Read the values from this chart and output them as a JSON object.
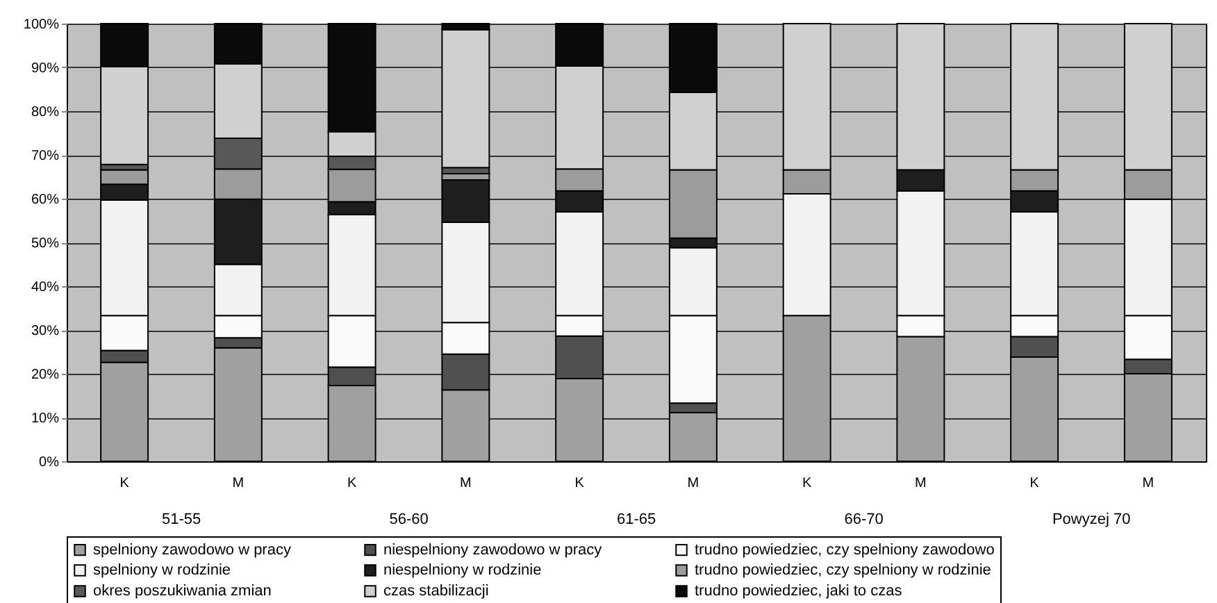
{
  "chart_data": {
    "type": "bar",
    "stacked": true,
    "categories": [
      "K",
      "M",
      "K",
      "M",
      "K",
      "M",
      "K",
      "M",
      "K",
      "M"
    ],
    "annotations": [
      "51-55",
      "56-60",
      "61-65",
      "66-70",
      "Powyzej 70"
    ],
    "series": [
      {
        "name": "spelniony zawodowo w pracy",
        "color": "#a0a0a0",
        "values": [
          22.6,
          25.9,
          17.3,
          16.3,
          18.9,
          11.1,
          33.3,
          28.5,
          23.8,
          20.0
        ]
      },
      {
        "name": "niespelniony zawodowo w pracy",
        "color": "#505050",
        "values": [
          2.7,
          2.3,
          4.2,
          8.2,
          9.7,
          2.2,
          0,
          0,
          4.7,
          3.3
        ]
      },
      {
        "name": "trudno powiedziec, czy spelniony zawodowo",
        "color": "#fafafa",
        "values": [
          8.0,
          5.1,
          11.8,
          7.2,
          4.7,
          20.0,
          0,
          4.8,
          4.8,
          10.0
        ]
      },
      {
        "name": "spelniony w rodzinie",
        "color": "#f2f2f2",
        "values": [
          26.4,
          11.7,
          23.1,
          22.9,
          23.7,
          15.5,
          27.8,
          28.5,
          23.7,
          26.6
        ]
      },
      {
        "name": "niespelniony w rodzinie",
        "color": "#1e1e1e",
        "values": [
          3.6,
          14.9,
          2.9,
          9.7,
          4.8,
          2.2,
          0,
          4.8,
          4.8,
          0
        ]
      },
      {
        "name": "trudno powiedziec, czy spelniony w rodzinie",
        "color": "#9c9c9c",
        "values": [
          3.3,
          6.9,
          7.4,
          1.4,
          5.0,
          15.6,
          5.5,
          0,
          4.8,
          6.7
        ]
      },
      {
        "name": "okres poszukiwania zmian",
        "color": "#585858",
        "values": [
          1.2,
          7.0,
          3.0,
          1.4,
          0,
          0,
          0,
          0,
          0,
          0
        ]
      },
      {
        "name": "czas stabilizacji",
        "color": "#d0d0d0",
        "values": [
          22.4,
          17.0,
          5.6,
          31.5,
          23.5,
          17.7,
          33.4,
          33.4,
          33.4,
          33.4
        ]
      },
      {
        "name": "trudno powiedziec, jaki to czas",
        "color": "#0a0a0a",
        "values": [
          9.8,
          9.2,
          24.7,
          1.4,
          9.7,
          15.7,
          0,
          0,
          0,
          0
        ]
      }
    ],
    "ylim": [
      0,
      100
    ],
    "yticks": [
      {
        "value": 0,
        "label": "0%"
      },
      {
        "value": 10,
        "label": "10%"
      },
      {
        "value": 20,
        "label": "20%"
      },
      {
        "value": 30,
        "label": "30%"
      },
      {
        "value": 40,
        "label": "40%"
      },
      {
        "value": 50,
        "label": "50%"
      },
      {
        "value": 60,
        "label": "60%"
      },
      {
        "value": 70,
        "label": "70%"
      },
      {
        "value": 80,
        "label": "80%"
      },
      {
        "value": 90,
        "label": "90%"
      },
      {
        "value": 100,
        "label": "100%"
      }
    ],
    "grid": "y",
    "legend": "bottom"
  }
}
